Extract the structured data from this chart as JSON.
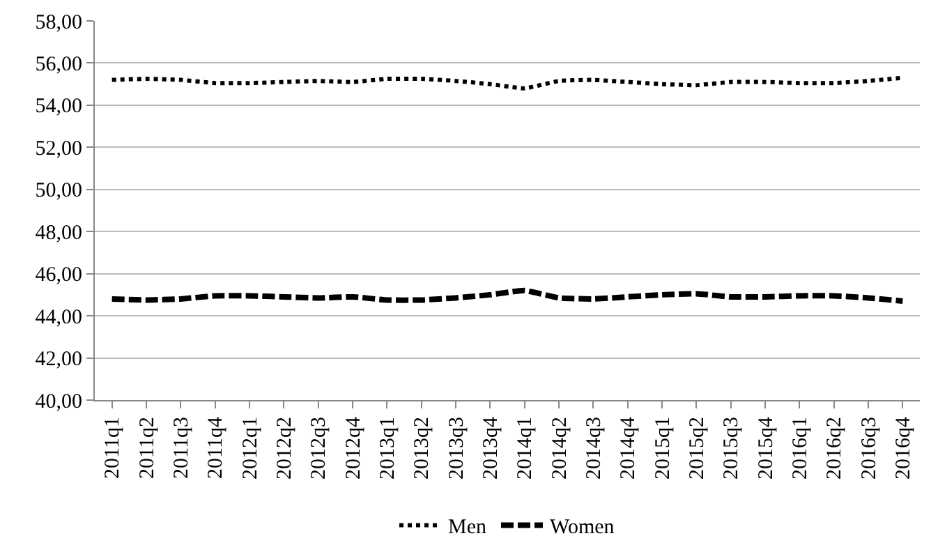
{
  "chart_data": {
    "type": "line",
    "categories": [
      "2011q1",
      "2011q2",
      "2011q3",
      "2011q4",
      "2012q1",
      "2012q2",
      "2012q3",
      "2012q4",
      "2013q1",
      "2013q2",
      "2013q3",
      "2013q4",
      "2014q1",
      "2014q2",
      "2014q3",
      "2014q4",
      "2015q1",
      "2015q2",
      "2015q3",
      "2015q4",
      "2016q1",
      "2016q2",
      "2016q3",
      "2016q4"
    ],
    "series": [
      {
        "name": "Men",
        "color": "#000000",
        "line_style": "dotted",
        "values": [
          55.2,
          55.25,
          55.2,
          55.05,
          55.05,
          55.1,
          55.15,
          55.1,
          55.25,
          55.25,
          55.15,
          55.0,
          54.8,
          55.15,
          55.2,
          55.1,
          55.0,
          54.95,
          55.1,
          55.1,
          55.05,
          55.05,
          55.15,
          55.3
        ]
      },
      {
        "name": "Women",
        "color": "#000000",
        "line_style": "dashed",
        "values": [
          44.8,
          44.75,
          44.8,
          44.95,
          44.95,
          44.9,
          44.85,
          44.9,
          44.75,
          44.75,
          44.85,
          45.0,
          45.2,
          44.85,
          44.8,
          44.9,
          45.0,
          45.05,
          44.9,
          44.9,
          44.95,
          44.95,
          44.85,
          44.7
        ]
      }
    ],
    "ylim": [
      40,
      58
    ],
    "yticks": [
      {
        "value": 40,
        "label": "40,00"
      },
      {
        "value": 42,
        "label": "42,00"
      },
      {
        "value": 44,
        "label": "44,00"
      },
      {
        "value": 46,
        "label": "46,00"
      },
      {
        "value": 48,
        "label": "48,00"
      },
      {
        "value": 50,
        "label": "50,00"
      },
      {
        "value": 52,
        "label": "52,00"
      },
      {
        "value": 54,
        "label": "54,00"
      },
      {
        "value": 56,
        "label": "56,00"
      },
      {
        "value": 58,
        "label": "58,00"
      }
    ],
    "grid": "y",
    "legend": "bottom",
    "marker": "none"
  }
}
